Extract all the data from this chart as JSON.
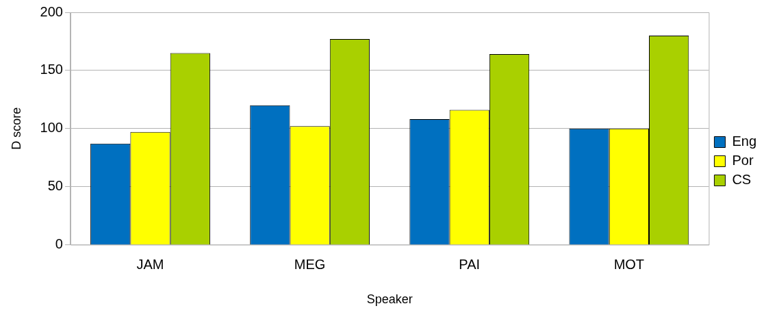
{
  "chart_data": {
    "type": "bar",
    "xlabel": "Speaker",
    "ylabel": "D score",
    "categories": [
      "JAM",
      "MEG",
      "PAI",
      "MOT"
    ],
    "series": [
      {
        "name": "Eng",
        "color": "#0070c0",
        "values": [
          87,
          120,
          108,
          100
        ]
      },
      {
        "name": "Por",
        "color": "#ffff00",
        "values": [
          97,
          102,
          116,
          100
        ]
      },
      {
        "name": "CS",
        "color": "#a9d000",
        "values": [
          165,
          177,
          164,
          180
        ]
      }
    ],
    "ylim": [
      0,
      200
    ],
    "yticks": [
      0,
      50,
      100,
      150,
      200
    ],
    "grid": "y",
    "legend": "right"
  }
}
